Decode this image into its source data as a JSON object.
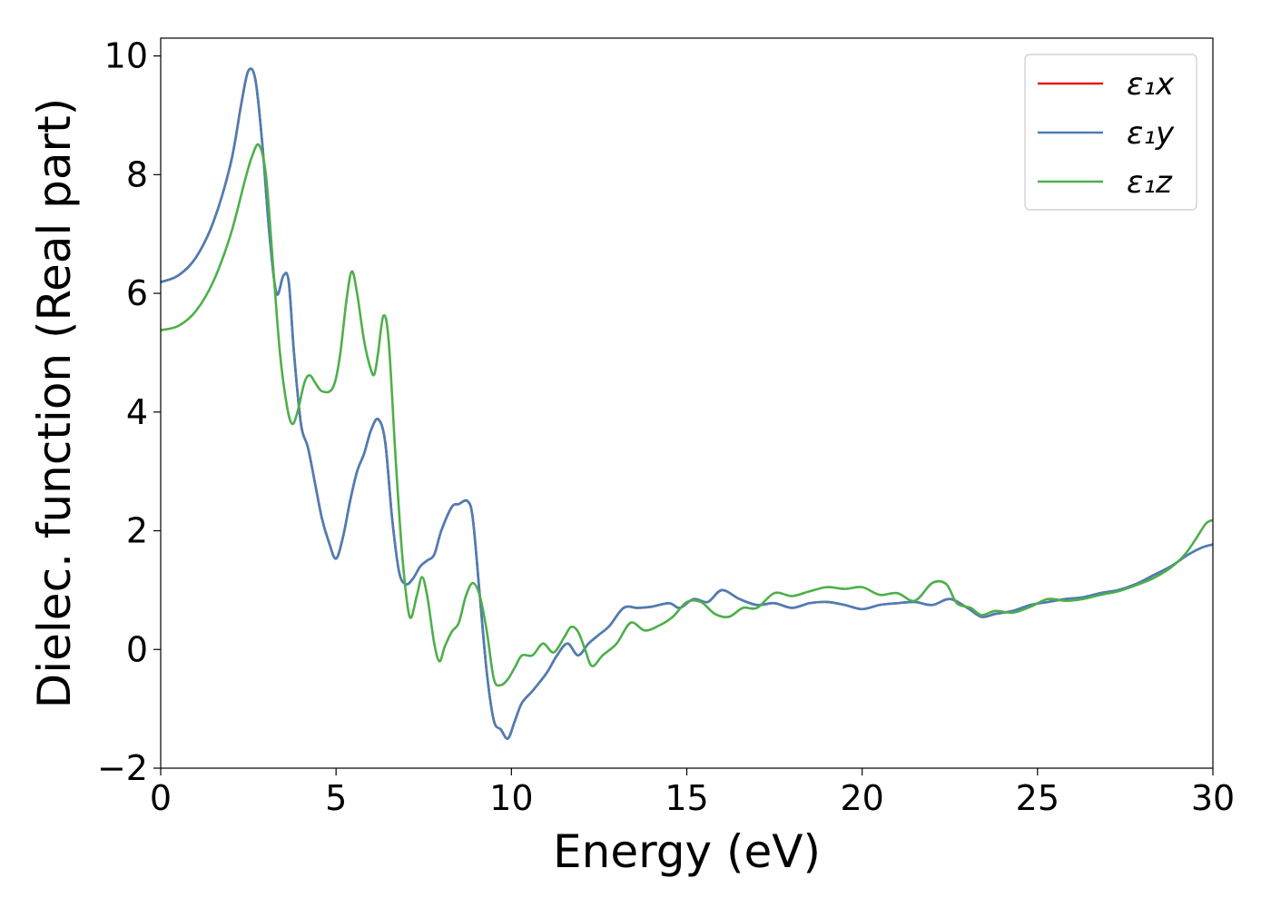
{
  "chart_data": {
    "type": "line",
    "title": "",
    "xlabel": "Energy (eV)",
    "ylabel": "Dielec. function (Real part)",
    "xlim": [
      0,
      30
    ],
    "ylim": [
      -2,
      10.3
    ],
    "xticks": [
      0,
      5,
      10,
      15,
      20,
      25,
      30
    ],
    "xtick_labels": [
      "0",
      "5",
      "10",
      "15",
      "20",
      "25",
      "30"
    ],
    "yticks": [
      -2,
      0,
      2,
      4,
      6,
      8,
      10
    ],
    "ytick_labels": [
      "−2",
      "0",
      "2",
      "4",
      "6",
      "8",
      "10"
    ],
    "grid": false,
    "legend_position": "top-right",
    "series": [
      {
        "name": "ε₁x",
        "color": "#e41a1c",
        "points": [
          [
            0,
            6.19
          ],
          [
            0.5,
            6.3
          ],
          [
            1.0,
            6.6
          ],
          [
            1.5,
            7.2
          ],
          [
            2.0,
            8.2
          ],
          [
            2.3,
            9.2
          ],
          [
            2.5,
            9.75
          ],
          [
            2.7,
            9.6
          ],
          [
            2.9,
            8.5
          ],
          [
            3.1,
            7.0
          ],
          [
            3.3,
            6.0
          ],
          [
            3.5,
            6.3
          ],
          [
            3.65,
            6.2
          ],
          [
            3.8,
            5.0
          ],
          [
            4.0,
            3.8
          ],
          [
            4.2,
            3.4
          ],
          [
            4.4,
            2.8
          ],
          [
            4.6,
            2.2
          ],
          [
            4.8,
            1.8
          ],
          [
            5.0,
            1.53
          ],
          [
            5.2,
            1.9
          ],
          [
            5.4,
            2.5
          ],
          [
            5.6,
            3.0
          ],
          [
            5.8,
            3.3
          ],
          [
            6.0,
            3.7
          ],
          [
            6.2,
            3.88
          ],
          [
            6.4,
            3.5
          ],
          [
            6.6,
            2.2
          ],
          [
            6.8,
            1.3
          ],
          [
            7.0,
            1.1
          ],
          [
            7.2,
            1.2
          ],
          [
            7.4,
            1.4
          ],
          [
            7.6,
            1.5
          ],
          [
            7.8,
            1.6
          ],
          [
            8.0,
            2.0
          ],
          [
            8.3,
            2.4
          ],
          [
            8.5,
            2.45
          ],
          [
            8.75,
            2.5
          ],
          [
            8.9,
            2.2
          ],
          [
            9.1,
            0.9
          ],
          [
            9.3,
            -0.4
          ],
          [
            9.5,
            -1.2
          ],
          [
            9.7,
            -1.35
          ],
          [
            9.9,
            -1.5
          ],
          [
            10.1,
            -1.2
          ],
          [
            10.3,
            -0.9
          ],
          [
            10.6,
            -0.7
          ],
          [
            11.0,
            -0.4
          ],
          [
            11.3,
            -0.1
          ],
          [
            11.6,
            0.1
          ],
          [
            11.9,
            -0.1
          ],
          [
            12.2,
            0.1
          ],
          [
            12.5,
            0.25
          ],
          [
            12.8,
            0.4
          ],
          [
            13.2,
            0.7
          ],
          [
            13.6,
            0.7
          ],
          [
            14.0,
            0.72
          ],
          [
            14.5,
            0.78
          ],
          [
            14.8,
            0.7
          ],
          [
            15.2,
            0.85
          ],
          [
            15.6,
            0.8
          ],
          [
            16.0,
            1.0
          ],
          [
            16.5,
            0.85
          ],
          [
            17.0,
            0.75
          ],
          [
            17.5,
            0.78
          ],
          [
            18.0,
            0.7
          ],
          [
            18.5,
            0.78
          ],
          [
            19.0,
            0.8
          ],
          [
            19.5,
            0.75
          ],
          [
            20.0,
            0.68
          ],
          [
            20.5,
            0.75
          ],
          [
            21.0,
            0.78
          ],
          [
            21.5,
            0.8
          ],
          [
            22.0,
            0.75
          ],
          [
            22.5,
            0.85
          ],
          [
            23.0,
            0.7
          ],
          [
            23.4,
            0.55
          ],
          [
            23.8,
            0.6
          ],
          [
            24.3,
            0.65
          ],
          [
            24.8,
            0.75
          ],
          [
            25.3,
            0.8
          ],
          [
            25.8,
            0.85
          ],
          [
            26.3,
            0.88
          ],
          [
            26.8,
            0.95
          ],
          [
            27.3,
            1.0
          ],
          [
            27.8,
            1.1
          ],
          [
            28.3,
            1.25
          ],
          [
            28.8,
            1.4
          ],
          [
            29.3,
            1.6
          ],
          [
            29.7,
            1.72
          ],
          [
            30.0,
            1.77
          ]
        ]
      },
      {
        "name": "ε₁y",
        "color": "#4a7fb5",
        "points": [
          [
            0,
            6.19
          ],
          [
            0.5,
            6.3
          ],
          [
            1.0,
            6.6
          ],
          [
            1.5,
            7.2
          ],
          [
            2.0,
            8.2
          ],
          [
            2.3,
            9.2
          ],
          [
            2.5,
            9.75
          ],
          [
            2.7,
            9.6
          ],
          [
            2.9,
            8.5
          ],
          [
            3.1,
            7.0
          ],
          [
            3.3,
            6.0
          ],
          [
            3.5,
            6.3
          ],
          [
            3.65,
            6.2
          ],
          [
            3.8,
            5.0
          ],
          [
            4.0,
            3.8
          ],
          [
            4.2,
            3.4
          ],
          [
            4.4,
            2.8
          ],
          [
            4.6,
            2.2
          ],
          [
            4.8,
            1.8
          ],
          [
            5.0,
            1.53
          ],
          [
            5.2,
            1.9
          ],
          [
            5.4,
            2.5
          ],
          [
            5.6,
            3.0
          ],
          [
            5.8,
            3.3
          ],
          [
            6.0,
            3.7
          ],
          [
            6.2,
            3.88
          ],
          [
            6.4,
            3.5
          ],
          [
            6.6,
            2.2
          ],
          [
            6.8,
            1.3
          ],
          [
            7.0,
            1.1
          ],
          [
            7.2,
            1.2
          ],
          [
            7.4,
            1.4
          ],
          [
            7.6,
            1.5
          ],
          [
            7.8,
            1.6
          ],
          [
            8.0,
            2.0
          ],
          [
            8.3,
            2.4
          ],
          [
            8.5,
            2.45
          ],
          [
            8.75,
            2.5
          ],
          [
            8.9,
            2.2
          ],
          [
            9.1,
            0.9
          ],
          [
            9.3,
            -0.4
          ],
          [
            9.5,
            -1.2
          ],
          [
            9.7,
            -1.35
          ],
          [
            9.9,
            -1.5
          ],
          [
            10.1,
            -1.2
          ],
          [
            10.3,
            -0.9
          ],
          [
            10.6,
            -0.7
          ],
          [
            11.0,
            -0.4
          ],
          [
            11.3,
            -0.1
          ],
          [
            11.6,
            0.1
          ],
          [
            11.9,
            -0.1
          ],
          [
            12.2,
            0.1
          ],
          [
            12.5,
            0.25
          ],
          [
            12.8,
            0.4
          ],
          [
            13.2,
            0.7
          ],
          [
            13.6,
            0.7
          ],
          [
            14.0,
            0.72
          ],
          [
            14.5,
            0.78
          ],
          [
            14.8,
            0.7
          ],
          [
            15.2,
            0.85
          ],
          [
            15.6,
            0.8
          ],
          [
            16.0,
            1.0
          ],
          [
            16.5,
            0.85
          ],
          [
            17.0,
            0.75
          ],
          [
            17.5,
            0.78
          ],
          [
            18.0,
            0.7
          ],
          [
            18.5,
            0.78
          ],
          [
            19.0,
            0.8
          ],
          [
            19.5,
            0.75
          ],
          [
            20.0,
            0.68
          ],
          [
            20.5,
            0.75
          ],
          [
            21.0,
            0.78
          ],
          [
            21.5,
            0.8
          ],
          [
            22.0,
            0.75
          ],
          [
            22.5,
            0.85
          ],
          [
            23.0,
            0.7
          ],
          [
            23.4,
            0.55
          ],
          [
            23.8,
            0.6
          ],
          [
            24.3,
            0.65
          ],
          [
            24.8,
            0.75
          ],
          [
            25.3,
            0.8
          ],
          [
            25.8,
            0.85
          ],
          [
            26.3,
            0.88
          ],
          [
            26.8,
            0.95
          ],
          [
            27.3,
            1.0
          ],
          [
            27.8,
            1.1
          ],
          [
            28.3,
            1.25
          ],
          [
            28.8,
            1.4
          ],
          [
            29.3,
            1.6
          ],
          [
            29.7,
            1.72
          ],
          [
            30.0,
            1.77
          ]
        ]
      },
      {
        "name": "ε₁z",
        "color": "#4daf4a",
        "points": [
          [
            0,
            5.38
          ],
          [
            0.5,
            5.45
          ],
          [
            1.0,
            5.7
          ],
          [
            1.5,
            6.2
          ],
          [
            2.0,
            7.0
          ],
          [
            2.4,
            7.9
          ],
          [
            2.6,
            8.3
          ],
          [
            2.8,
            8.5
          ],
          [
            3.0,
            8.0
          ],
          [
            3.2,
            6.5
          ],
          [
            3.4,
            5.0
          ],
          [
            3.6,
            4.1
          ],
          [
            3.75,
            3.8
          ],
          [
            3.9,
            4.0
          ],
          [
            4.1,
            4.5
          ],
          [
            4.25,
            4.62
          ],
          [
            4.4,
            4.5
          ],
          [
            4.6,
            4.35
          ],
          [
            4.9,
            4.4
          ],
          [
            5.1,
            4.9
          ],
          [
            5.3,
            5.9
          ],
          [
            5.45,
            6.37
          ],
          [
            5.6,
            6.0
          ],
          [
            5.8,
            5.2
          ],
          [
            6.0,
            4.7
          ],
          [
            6.1,
            4.65
          ],
          [
            6.2,
            5.0
          ],
          [
            6.35,
            5.62
          ],
          [
            6.5,
            5.2
          ],
          [
            6.7,
            3.2
          ],
          [
            6.9,
            1.5
          ],
          [
            7.1,
            0.55
          ],
          [
            7.3,
            0.9
          ],
          [
            7.45,
            1.22
          ],
          [
            7.6,
            0.9
          ],
          [
            7.8,
            0.1
          ],
          [
            7.95,
            -0.2
          ],
          [
            8.1,
            0.05
          ],
          [
            8.3,
            0.3
          ],
          [
            8.5,
            0.45
          ],
          [
            8.7,
            0.9
          ],
          [
            8.9,
            1.12
          ],
          [
            9.1,
            0.9
          ],
          [
            9.3,
            0.3
          ],
          [
            9.5,
            -0.5
          ],
          [
            9.7,
            -0.6
          ],
          [
            9.9,
            -0.5
          ],
          [
            10.1,
            -0.3
          ],
          [
            10.3,
            -0.1
          ],
          [
            10.6,
            -0.1
          ],
          [
            10.9,
            0.1
          ],
          [
            11.2,
            -0.05
          ],
          [
            11.5,
            0.2
          ],
          [
            11.7,
            0.38
          ],
          [
            11.9,
            0.3
          ],
          [
            12.1,
            0.0
          ],
          [
            12.3,
            -0.28
          ],
          [
            12.6,
            -0.1
          ],
          [
            13.0,
            0.1
          ],
          [
            13.4,
            0.45
          ],
          [
            13.8,
            0.32
          ],
          [
            14.2,
            0.4
          ],
          [
            14.6,
            0.55
          ],
          [
            15.0,
            0.8
          ],
          [
            15.4,
            0.8
          ],
          [
            15.8,
            0.6
          ],
          [
            16.2,
            0.55
          ],
          [
            16.6,
            0.7
          ],
          [
            17.0,
            0.7
          ],
          [
            17.5,
            0.95
          ],
          [
            18.0,
            0.9
          ],
          [
            18.5,
            0.98
          ],
          [
            19.0,
            1.05
          ],
          [
            19.5,
            1.02
          ],
          [
            20.0,
            1.05
          ],
          [
            20.5,
            0.92
          ],
          [
            21.0,
            0.95
          ],
          [
            21.5,
            0.82
          ],
          [
            22.0,
            1.12
          ],
          [
            22.4,
            1.1
          ],
          [
            22.7,
            0.78
          ],
          [
            23.1,
            0.7
          ],
          [
            23.4,
            0.58
          ],
          [
            23.8,
            0.65
          ],
          [
            24.3,
            0.62
          ],
          [
            24.8,
            0.72
          ],
          [
            25.3,
            0.85
          ],
          [
            25.8,
            0.82
          ],
          [
            26.3,
            0.85
          ],
          [
            26.8,
            0.92
          ],
          [
            27.3,
            0.98
          ],
          [
            27.8,
            1.08
          ],
          [
            28.3,
            1.2
          ],
          [
            28.8,
            1.38
          ],
          [
            29.2,
            1.6
          ],
          [
            29.5,
            1.85
          ],
          [
            29.8,
            2.12
          ],
          [
            30.0,
            2.18
          ]
        ]
      }
    ]
  }
}
